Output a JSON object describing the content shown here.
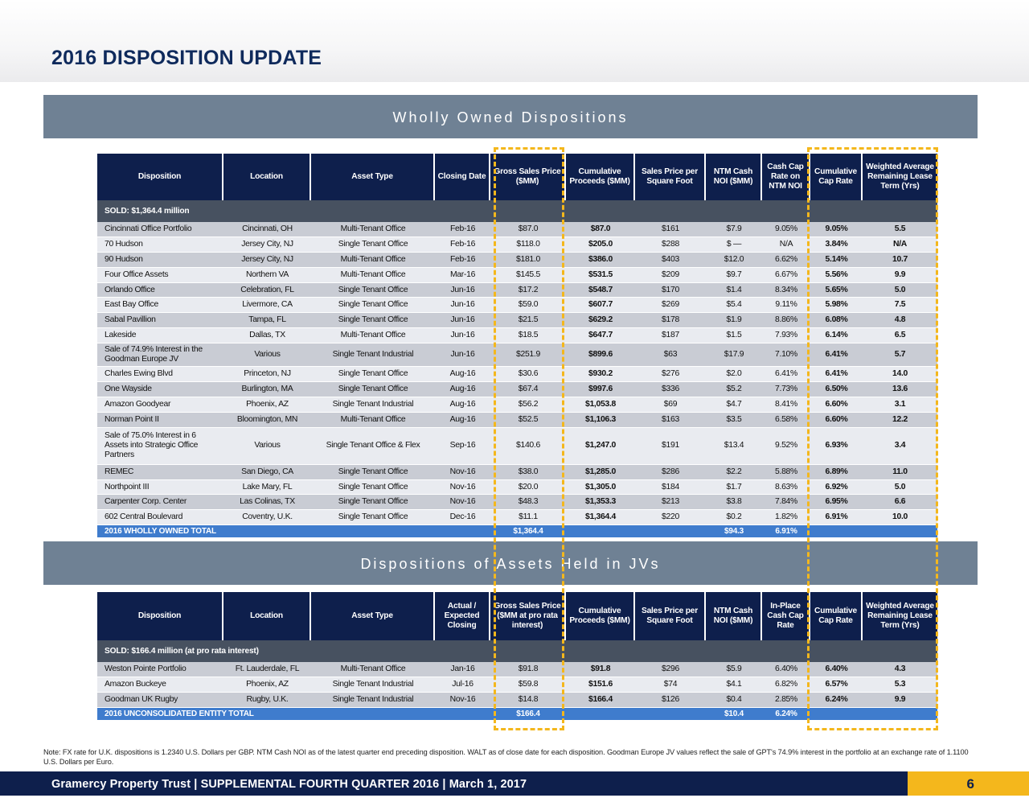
{
  "page_title": "2016 DISPOSITION UPDATE",
  "section1": {
    "title": "Wholly Owned Dispositions",
    "headers": [
      "Disposition",
      "Location",
      "Asset Type",
      "Closing Date",
      "Gross Sales Price ($MM)",
      "Cumulative Proceeds ($MM)",
      "Sales Price per Square Foot",
      "NTM Cash NOI ($MM)",
      "Cash Cap Rate on NTM NOI",
      "Cumulative Cap Rate",
      "Weighted Average Remaining Lease Term (Yrs)"
    ],
    "sold_label": "SOLD: $1,364.4 million",
    "rows": [
      [
        "Cincinnati Office Portfolio",
        "Cincinnati, OH",
        "Multi-Tenant Office",
        "Feb-16",
        "$87.0",
        "$87.0",
        "$161",
        "$7.9",
        "9.05%",
        "9.05%",
        "5.5"
      ],
      [
        "70 Hudson",
        "Jersey City, NJ",
        "Single Tenant Office",
        "Feb-16",
        "$118.0",
        "$205.0",
        "$288",
        "$ —",
        "N/A",
        "3.84%",
        "N/A"
      ],
      [
        "90 Hudson",
        "Jersey City, NJ",
        "Multi-Tenant Office",
        "Feb-16",
        "$181.0",
        "$386.0",
        "$403",
        "$12.0",
        "6.62%",
        "5.14%",
        "10.7"
      ],
      [
        "Four Office Assets",
        "Northern VA",
        "Multi-Tenant Office",
        "Mar-16",
        "$145.5",
        "$531.5",
        "$209",
        "$9.7",
        "6.67%",
        "5.56%",
        "9.9"
      ],
      [
        "Orlando Office",
        "Celebration, FL",
        "Single Tenant Office",
        "Jun-16",
        "$17.2",
        "$548.7",
        "$170",
        "$1.4",
        "8.34%",
        "5.65%",
        "5.0"
      ],
      [
        "East Bay Office",
        "Livermore, CA",
        "Single Tenant Office",
        "Jun-16",
        "$59.0",
        "$607.7",
        "$269",
        "$5.4",
        "9.11%",
        "5.98%",
        "7.5"
      ],
      [
        "Sabal Pavillion",
        "Tampa, FL",
        "Single Tenant Office",
        "Jun-16",
        "$21.5",
        "$629.2",
        "$178",
        "$1.9",
        "8.86%",
        "6.08%",
        "4.8"
      ],
      [
        "Lakeside",
        "Dallas, TX",
        "Multi-Tenant Office",
        "Jun-16",
        "$18.5",
        "$647.7",
        "$187",
        "$1.5",
        "7.93%",
        "6.14%",
        "6.5"
      ],
      [
        "Sale of 74.9% Interest in the Goodman Europe JV",
        "Various",
        "Single Tenant Industrial",
        "Jun-16",
        "$251.9",
        "$899.6",
        "$63",
        "$17.9",
        "7.10%",
        "6.41%",
        "5.7"
      ],
      [
        "Charles Ewing Blvd",
        "Princeton, NJ",
        "Single Tenant Office",
        "Aug-16",
        "$30.6",
        "$930.2",
        "$276",
        "$2.0",
        "6.41%",
        "6.41%",
        "14.0"
      ],
      [
        "One Wayside",
        "Burlington, MA",
        "Single Tenant Office",
        "Aug-16",
        "$67.4",
        "$997.6",
        "$336",
        "$5.2",
        "7.73%",
        "6.50%",
        "13.6"
      ],
      [
        "Amazon Goodyear",
        "Phoenix, AZ",
        "Single Tenant Industrial",
        "Aug-16",
        "$56.2",
        "$1,053.8",
        "$69",
        "$4.7",
        "8.41%",
        "6.60%",
        "3.1"
      ],
      [
        "Norman Point II",
        "Bloomington, MN",
        "Multi-Tenant Office",
        "Aug-16",
        "$52.5",
        "$1,106.3",
        "$163",
        "$3.5",
        "6.58%",
        "6.60%",
        "12.2"
      ],
      [
        "Sale of 75.0% Interest in 6 Assets into Strategic Office Partners",
        "Various",
        "Single Tenant Office & Flex",
        "Sep-16",
        "$140.6",
        "$1,247.0",
        "$191",
        "$13.4",
        "9.52%",
        "6.93%",
        "3.4"
      ],
      [
        "REMEC",
        "San Diego, CA",
        "Single Tenant Office",
        "Nov-16",
        "$38.0",
        "$1,285.0",
        "$286",
        "$2.2",
        "5.88%",
        "6.89%",
        "11.0"
      ],
      [
        "Northpoint III",
        "Lake Mary, FL",
        "Single Tenant Office",
        "Nov-16",
        "$20.0",
        "$1,305.0",
        "$184",
        "$1.7",
        "8.63%",
        "6.92%",
        "5.0"
      ],
      [
        "Carpenter Corp. Center",
        "Las Colinas, TX",
        "Single Tenant Office",
        "Nov-16",
        "$48.3",
        "$1,353.3",
        "$213",
        "$3.8",
        "7.84%",
        "6.95%",
        "6.6"
      ],
      [
        "602 Central Boulevard",
        "Coventry, U.K.",
        "Single Tenant Office",
        "Dec-16",
        "$11.1",
        "$1,364.4",
        "$220",
        "$0.2",
        "1.82%",
        "6.91%",
        "10.0"
      ]
    ],
    "total": {
      "label": "2016 WHOLLY OWNED TOTAL",
      "gross": "$1,364.4",
      "noi": "$94.3",
      "cap": "6.91%"
    }
  },
  "section2": {
    "title": "Dispositions of Assets Held in JVs",
    "headers": [
      "Disposition",
      "Location",
      "Asset Type",
      "Actual / Expected Closing",
      "Gross Sales Price ($MM at pro rata interest)",
      "Cumulative Proceeds ($MM)",
      "Sales Price per Square Foot",
      "NTM Cash NOI ($MM)",
      "In-Place Cash Cap Rate",
      "Cumulative Cap Rate",
      "Weighted Average Remaining Lease Term (Yrs)"
    ],
    "sold_label": "SOLD: $166.4 million (at pro rata interest)",
    "rows": [
      [
        "Weston Pointe Portfolio",
        "Ft. Lauderdale, FL",
        "Multi-Tenant Office",
        "Jan-16",
        "$91.8",
        "$91.8",
        "$296",
        "$5.9",
        "6.40%",
        "6.40%",
        "4.3"
      ],
      [
        "Amazon Buckeye",
        "Phoenix, AZ",
        "Single Tenant Industrial",
        "Jul-16",
        "$59.8",
        "$151.6",
        "$74",
        "$4.1",
        "6.82%",
        "6.57%",
        "5.3"
      ],
      [
        "Goodman UK Rugby",
        "Rugby, U.K.",
        "Single Tenant Industrial",
        "Nov-16",
        "$14.8",
        "$166.4",
        "$126",
        "$0.4",
        "2.85%",
        "6.24%",
        "9.9"
      ]
    ],
    "total": {
      "label": "2016 UNCONSOLIDATED ENTITY TOTAL",
      "gross": "$166.4",
      "noi": "$10.4",
      "cap": "6.24%"
    }
  },
  "note": "Note: FX rate for U.K. dispositions is 1.2340 U.S. Dollars per GBP. NTM Cash NOI as of the latest quarter end preceding disposition. WALT as of close date for each disposition. Goodman Europe JV values reflect the sale of GPT's 74.9% interest in the portfolio at an exchange rate of 1.1100 U.S. Dollars per Euro.",
  "footer": {
    "text": "Gramercy Property Trust | SUPPLEMENTAL FOURTH QUARTER 2016 | March 1, 2017",
    "page_number": "6"
  },
  "colors": {
    "navy": "#0e1f4c",
    "band": "#6f8194",
    "accent": "#f4b71c",
    "total_blue": "#3f7ccd"
  }
}
